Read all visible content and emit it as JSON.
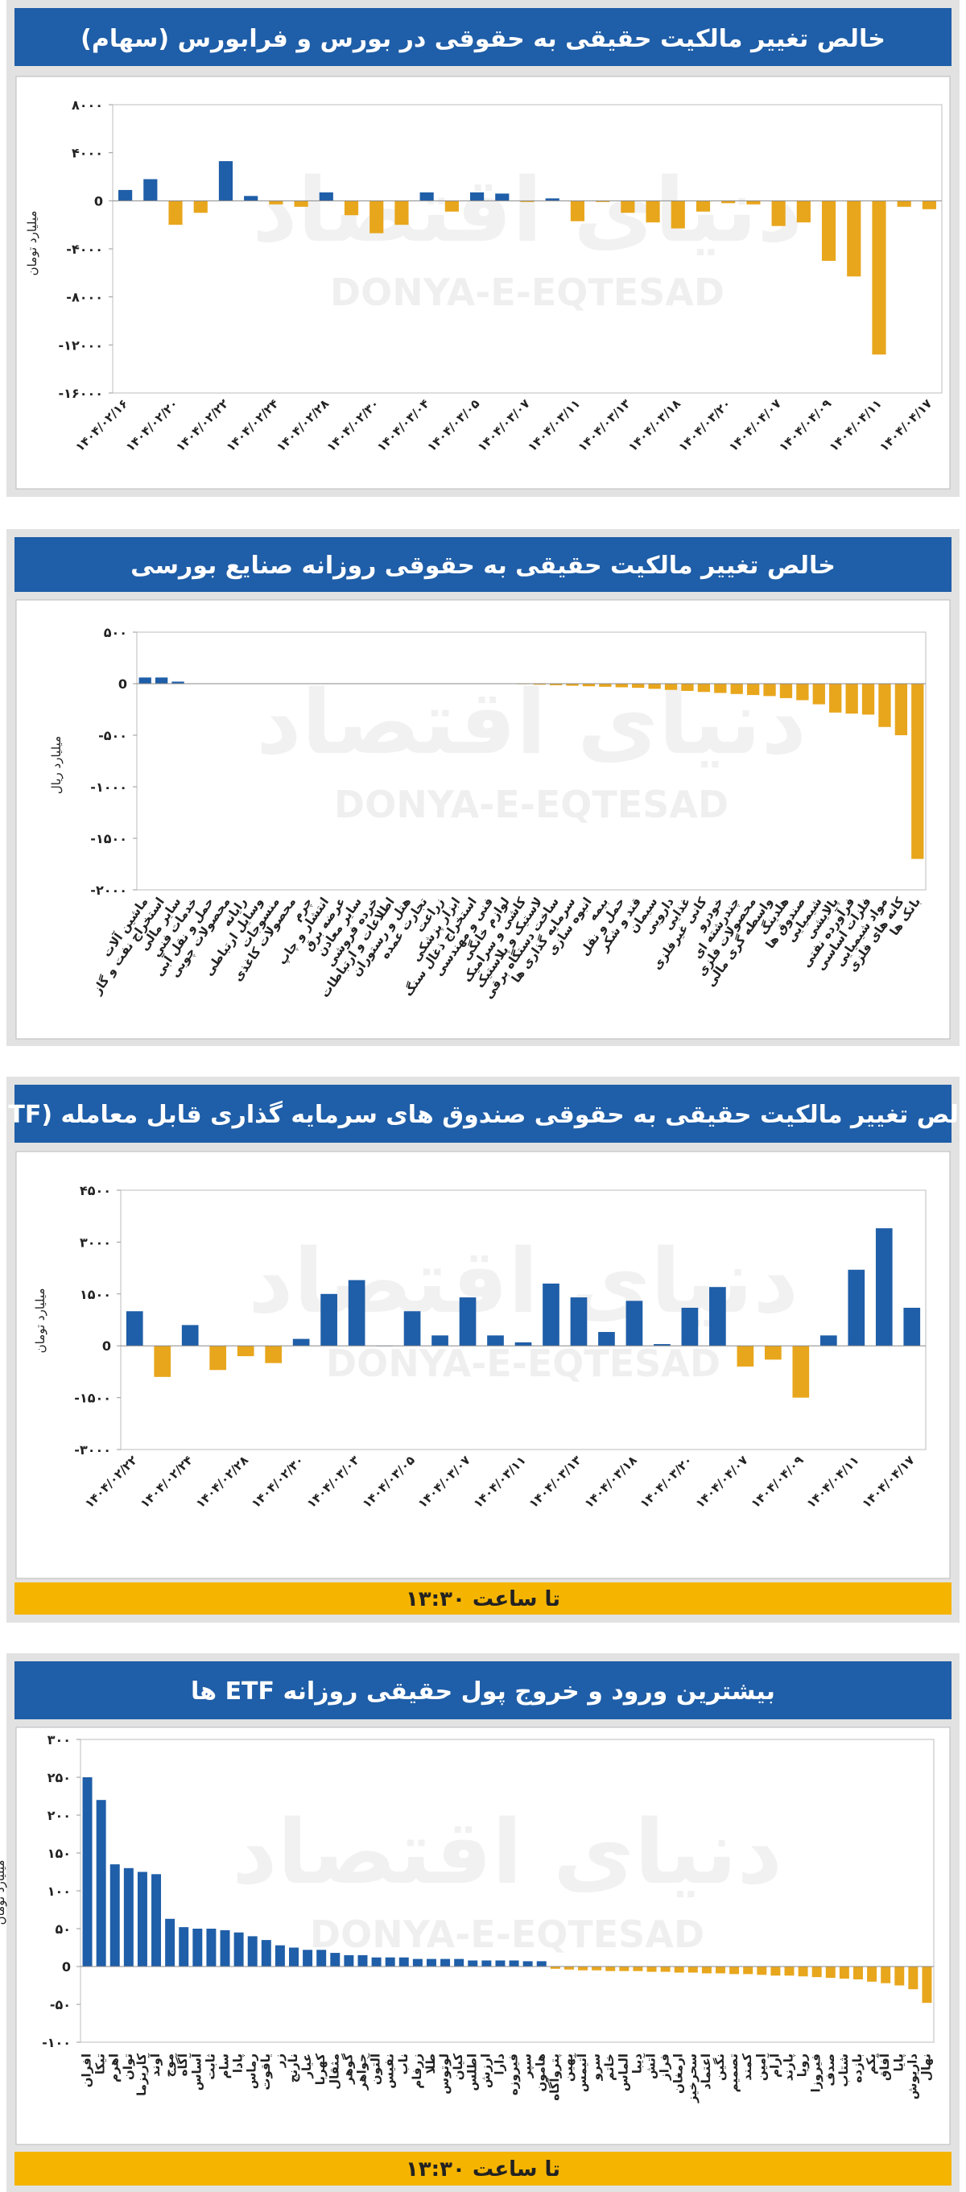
{
  "watermark": {
    "fa": "دنیای اقتصاد",
    "en": "DONYA-E-EQTESAD"
  },
  "chart_data": [
    {
      "type": "bar",
      "title": "خالص تغییر مالکیت حقیقی به حقوقی در بورس و فرابورس (سهام)",
      "y_label": "میلیارد تومان",
      "categories": [
        "۱۴۰۴/۰۲/۱۶",
        null,
        "۱۴۰۴/۰۲/۲۰",
        null,
        "۱۴۰۴/۰۲/۲۲",
        null,
        "۱۴۰۴/۰۲/۲۴",
        null,
        "۱۴۰۴/۰۲/۲۸",
        null,
        "۱۴۰۴/۰۲/۳۰",
        null,
        "۱۴۰۴/۰۳/۰۴",
        null,
        "۱۴۰۴/۰۳/۰۵",
        null,
        "۱۴۰۴/۰۳/۰۷",
        null,
        "۱۴۰۴/۰۳/۱۱",
        null,
        "۱۴۰۴/۰۳/۱۳",
        null,
        "۱۴۰۴/۰۳/۱۸",
        null,
        "۱۴۰۴/۰۳/۲۰",
        null,
        "۱۴۰۴/۰۴/۰۷",
        null,
        "۱۴۰۴/۰۴/۰۹",
        null,
        "۱۴۰۴/۰۴/۱۱",
        null,
        "۱۴۰۴/۰۴/۱۷"
      ],
      "values": [
        900,
        1800,
        -2000,
        -1000,
        3300,
        400,
        -300,
        -500,
        700,
        -1200,
        -2700,
        -2000,
        700,
        -900,
        700,
        600,
        -100,
        200,
        -1700,
        -100,
        -1000,
        -1800,
        -2300,
        -900,
        -200,
        -300,
        -2100,
        -1800,
        -5000,
        -6300,
        -12800,
        -500,
        -700
      ],
      "ylim": [
        -16000,
        8000
      ],
      "yticks": [
        {
          "value": 8000,
          "label": "۸۰۰۰"
        },
        {
          "value": 4000,
          "label": "۴۰۰۰"
        },
        0,
        {
          "value": -4000,
          "label": "-۴۰۰۰"
        },
        {
          "value": -8000,
          "label": "-۸۰۰۰"
        },
        {
          "value": -12000,
          "label": "-۱۲۰۰۰"
        },
        {
          "value": -16000,
          "label": "-۱۶۰۰۰"
        }
      ],
      "colors": {
        "positive": "#1f5ea8",
        "negative": "#e8a61c"
      }
    },
    {
      "type": "bar",
      "title": "خالص تغییر مالکیت حقیقی به حقوقی روزانه صنایع بورسی",
      "y_label": "میلیارد ریال",
      "categories": [
        "ماشین آلات",
        "استخراج نفت و گاز",
        "سایر مالی",
        "خدمات فنی",
        "حمل و نقل آبی",
        "محصولات چوبی",
        "رایانه",
        "وسایل ارتباطی",
        "منسوجات",
        "محصولات کاغذی",
        "چرم",
        "انتشار و چاپ",
        "عرضه برق",
        "سایر معادن",
        "خرده فروشی",
        "اطلاعات و ارتباطات",
        "هتل و رستوران",
        "تجارت عمده",
        "زراعت",
        "ابزار پزشکی",
        "استخراج ذغال سنگ",
        "فنی و مهندسی",
        "لوازم خانگی",
        "کاشی و سرامیک",
        "لاستیک و پلاستیک",
        "ساخت دستگاه برقی",
        "سرمایه گذاری ها",
        "انبوه سازی",
        "بیمه",
        "حمل و نقل",
        "قند و شکر",
        "سیمان",
        "دارویی",
        "غذایی",
        "کانی غیرفلزی",
        "خودرو",
        "چندرشته ای",
        "محصولات فلزی",
        "واسطه گری مالی",
        "هلدینگ",
        "صندوق ها",
        "شیمیایی",
        "پالایشی",
        "فرآورده نفتی",
        "فلزات اساسی",
        "مواد شیمیایی",
        "کانه های فلزی",
        "بانک ها"
      ],
      "values": [
        60,
        60,
        20,
        0,
        0,
        0,
        0,
        0,
        0,
        0,
        0,
        0,
        0,
        0,
        0,
        0,
        0,
        0,
        0,
        0,
        0,
        0,
        0,
        -5,
        -10,
        -15,
        -20,
        -25,
        -30,
        -35,
        -40,
        -50,
        -60,
        -70,
        -80,
        -90,
        -100,
        -110,
        -120,
        -140,
        -160,
        -200,
        -280,
        -290,
        -300,
        -420,
        -500,
        -1700
      ],
      "ylim": [
        -2000,
        500
      ],
      "yticks": [
        {
          "value": 500,
          "label": "۵۰۰"
        },
        0,
        {
          "value": -500,
          "label": "-۵۰۰"
        },
        {
          "value": -1000,
          "label": "-۱۰۰۰"
        },
        {
          "value": -1500,
          "label": "-۱۵۰۰"
        },
        {
          "value": -2000,
          "label": "-۲۰۰۰"
        }
      ],
      "colors": {
        "positive": "#1f5ea8",
        "negative": "#e8a61c"
      }
    },
    {
      "type": "bar",
      "title": "خالص تغییر مالکیت حقیقی به حقوقی صندوق های سرمایه گذاری قابل معامله (ETF)",
      "y_label": "میلیارد تومان",
      "footer": "تا ساعت ۱۳:۳۰",
      "categories": [
        "۱۴۰۴/۰۲/۲۲",
        null,
        "۱۴۰۴/۰۲/۲۴",
        null,
        "۱۴۰۴/۰۲/۲۸",
        null,
        "۱۴۰۴/۰۲/۳۰",
        null,
        "۱۴۰۴/۰۳/۰۳",
        null,
        "۱۴۰۴/۰۳/۰۵",
        null,
        "۱۴۰۴/۰۳/۰۷",
        null,
        "۱۴۰۴/۰۳/۱۱",
        null,
        "۱۴۰۴/۰۳/۱۳",
        null,
        "۱۴۰۴/۰۳/۱۸",
        null,
        "۱۴۰۴/۰۳/۲۰",
        null,
        "۱۴۰۴/۰۴/۰۷",
        null,
        "۱۴۰۴/۰۴/۰۹",
        null,
        "۱۴۰۴/۰۴/۱۱",
        null,
        "۱۴۰۴/۰۴/۱۷"
      ],
      "values": [
        1000,
        -900,
        600,
        -700,
        -300,
        -500,
        200,
        1500,
        1900,
        0,
        1000,
        300,
        1400,
        300,
        100,
        1800,
        1400,
        400,
        1300,
        50,
        1100,
        1700,
        -600,
        -400,
        -1500,
        300,
        2200,
        3400,
        1100
      ],
      "ylim": [
        -3000,
        4500
      ],
      "yticks": [
        {
          "value": 4500,
          "label": "۴۵۰۰"
        },
        {
          "value": 3000,
          "label": "۳۰۰۰"
        },
        {
          "value": 1500,
          "label": "۱۵۰۰"
        },
        0,
        {
          "value": -1500,
          "label": "-۱۵۰۰"
        },
        {
          "value": -3000,
          "label": "-۳۰۰۰"
        }
      ],
      "colors": {
        "positive": "#1f5ea8",
        "negative": "#e8a61c"
      }
    },
    {
      "type": "bar",
      "title": "بیشترین ورود و خروج پول حقیقی روزانه ETF ها",
      "y_label": "میلیارد تومان",
      "footer": "تا ساعت ۱۳:۳۰",
      "categories": [
        "افران",
        "تیکا",
        "اهرم",
        "توان",
        "کاریزما",
        "آوند",
        "موج",
        "آگاه",
        "آساس",
        "ثابت",
        "سام",
        "پادا",
        "رماس",
        "یاقوت",
        "زر",
        "نارنج",
        "عیار",
        "کهربا",
        "مثقال",
        "گوهر",
        "جواهر",
        "آلتون",
        "نفیس",
        "ناب",
        "زرفام",
        "طلا",
        "لوتوس",
        "کیان",
        "اطلس",
        "ارزش",
        "دارا",
        "فیروزه",
        "سپر",
        "هامون",
        "پتروآگاه",
        "بهین",
        "آتیمس",
        "سرو",
        "خاتم",
        "الماس",
        "دیبا",
        "آتش",
        "فراز",
        "ارمغان",
        "سحرخیز",
        "اعتماد",
        "نگین",
        "تصمیم",
        "کمند",
        "امین",
        "آرام",
        "پارند",
        "رویا",
        "فیروزا",
        "صدف",
        "شتاب",
        "بازده",
        "یکم",
        "آفاق",
        "پایا",
        "داریوش",
        "نهال"
      ],
      "values": [
        250,
        220,
        135,
        130,
        125,
        122,
        63,
        52,
        50,
        50,
        48,
        45,
        40,
        35,
        28,
        25,
        22,
        22,
        18,
        15,
        15,
        12,
        12,
        12,
        10,
        10,
        10,
        10,
        8,
        8,
        8,
        8,
        7,
        7,
        -3,
        -4,
        -5,
        -5,
        -6,
        -6,
        -6,
        -7,
        -7,
        -8,
        -8,
        -9,
        -9,
        -10,
        -10,
        -11,
        -12,
        -12,
        -13,
        -14,
        -15,
        -16,
        -17,
        -20,
        -22,
        -25,
        -30,
        -48
      ],
      "ylim": [
        -100,
        300
      ],
      "yticks": [
        {
          "value": 300,
          "label": "۳۰۰"
        },
        {
          "value": 250,
          "label": "۲۵۰"
        },
        {
          "value": 200,
          "label": "۲۰۰"
        },
        {
          "value": 150,
          "label": "۱۵۰"
        },
        {
          "value": 100,
          "label": "۱۰۰"
        },
        {
          "value": 50,
          "label": "۵۰"
        },
        0,
        {
          "value": -50,
          "label": "-۵۰"
        },
        {
          "value": -100,
          "label": "-۱۰۰"
        }
      ],
      "colors": {
        "positive": "#1f5ea8",
        "negative": "#e8a61c"
      }
    }
  ]
}
